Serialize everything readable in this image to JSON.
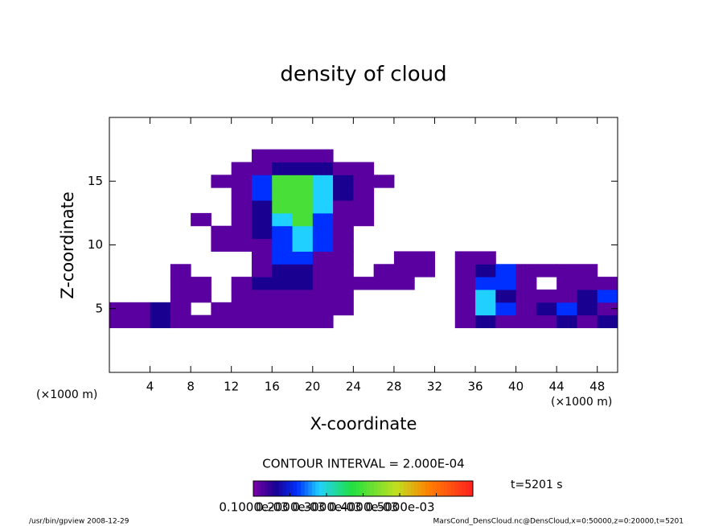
{
  "chart_data": {
    "type": "heatmap",
    "title": "density of cloud",
    "x_label": "X-coordinate",
    "y_label": "Z-coordinate",
    "x_unit": "(×1000 m)",
    "y_unit": "(×1000 m)",
    "contour_note": "CONTOUR INTERVAL = 2.000E-04",
    "time_label": "t=5201 s",
    "footer_left": "/usr/bin/gpview   2008-12-29",
    "footer_right": "MarsCond_DensCloud.nc@DensCloud,x=0:50000,z=0:20000,t=5201",
    "x": [
      1,
      3,
      5,
      7,
      9,
      11,
      13,
      15,
      17,
      19,
      21,
      23,
      25,
      27,
      29,
      31,
      33,
      35,
      37,
      39,
      41,
      43,
      45,
      47,
      49
    ],
    "z": [
      4,
      5,
      6,
      7,
      8,
      9,
      10,
      11,
      12,
      13,
      14,
      15,
      16,
      17
    ],
    "values": [
      [
        2e-05,
        2e-05,
        6e-05,
        2e-05,
        2e-05,
        2e-05,
        2e-05,
        2e-05,
        2e-05,
        2e-05,
        2e-05,
        0,
        0,
        0,
        0,
        0,
        0,
        2e-05,
        6e-05,
        2e-05,
        2e-05,
        2e-05,
        6e-05,
        2e-05,
        6e-05
      ],
      [
        2e-05,
        2e-05,
        6e-05,
        2e-05,
        0,
        2e-05,
        2e-05,
        2e-05,
        2e-05,
        2e-05,
        2e-05,
        2e-05,
        0,
        0,
        0,
        0,
        0,
        2e-05,
        0.00018,
        0.00012,
        2e-05,
        6e-05,
        0.00012,
        6e-05,
        2e-05
      ],
      [
        0,
        0,
        0,
        2e-05,
        2e-05,
        0,
        2e-05,
        2e-05,
        2e-05,
        2e-05,
        2e-05,
        2e-05,
        0,
        0,
        0,
        0,
        0,
        2e-05,
        0.00018,
        6e-05,
        2e-05,
        2e-05,
        2e-05,
        6e-05,
        0.00012
      ],
      [
        0,
        0,
        0,
        2e-05,
        2e-05,
        0,
        2e-05,
        6e-05,
        6e-05,
        6e-05,
        2e-05,
        2e-05,
        2e-05,
        2e-05,
        2e-05,
        0,
        0,
        2e-05,
        0.00012,
        0.00012,
        2e-05,
        0,
        2e-05,
        2e-05,
        2e-05
      ],
      [
        0,
        0,
        0,
        2e-05,
        0,
        0,
        0,
        2e-05,
        6e-05,
        6e-05,
        2e-05,
        2e-05,
        0,
        2e-05,
        2e-05,
        2e-05,
        0,
        2e-05,
        6e-05,
        0.00012,
        2e-05,
        2e-05,
        2e-05,
        2e-05,
        0
      ],
      [
        0,
        0,
        0,
        0,
        0,
        0,
        0,
        2e-05,
        0.00012,
        0.00012,
        2e-05,
        2e-05,
        0,
        0,
        2e-05,
        2e-05,
        0,
        2e-05,
        2e-05,
        0,
        0,
        0,
        0,
        0,
        0
      ],
      [
        0,
        0,
        0,
        0,
        0,
        2e-05,
        2e-05,
        2e-05,
        0.00012,
        0.00018,
        0.00012,
        2e-05,
        0,
        0,
        0,
        0,
        0,
        0,
        0,
        0,
        0,
        0,
        0,
        0,
        0
      ],
      [
        0,
        0,
        0,
        0,
        0,
        2e-05,
        2e-05,
        6e-05,
        0.00012,
        0.00018,
        0.00012,
        2e-05,
        0,
        0,
        0,
        0,
        0,
        0,
        0,
        0,
        0,
        0,
        0,
        0,
        0
      ],
      [
        0,
        0,
        0,
        0,
        2e-05,
        0,
        2e-05,
        6e-05,
        0.00018,
        0.0003,
        0.00012,
        2e-05,
        2e-05,
        0,
        0,
        0,
        0,
        0,
        0,
        0,
        0,
        0,
        0,
        0,
        0
      ],
      [
        0,
        0,
        0,
        0,
        0,
        0,
        2e-05,
        6e-05,
        0.0003,
        0.0003,
        0.00018,
        2e-05,
        2e-05,
        0,
        0,
        0,
        0,
        0,
        0,
        0,
        0,
        0,
        0,
        0,
        0
      ],
      [
        0,
        0,
        0,
        0,
        0,
        0,
        2e-05,
        0.00012,
        0.0003,
        0.0003,
        0.00018,
        6e-05,
        2e-05,
        0,
        0,
        0,
        0,
        0,
        0,
        0,
        0,
        0,
        0,
        0,
        0
      ],
      [
        0,
        0,
        0,
        0,
        0,
        2e-05,
        2e-05,
        0.00012,
        0.0003,
        0.0003,
        0.00018,
        6e-05,
        2e-05,
        2e-05,
        0,
        0,
        0,
        0,
        0,
        0,
        0,
        0,
        0,
        0,
        0
      ],
      [
        0,
        0,
        0,
        0,
        0,
        0,
        2e-05,
        2e-05,
        6e-05,
        6e-05,
        6e-05,
        2e-05,
        2e-05,
        0,
        0,
        0,
        0,
        0,
        0,
        0,
        0,
        0,
        0,
        0,
        0
      ],
      [
        0,
        0,
        0,
        0,
        0,
        0,
        0,
        2e-05,
        2e-05,
        2e-05,
        2e-05,
        0,
        0,
        0,
        0,
        0,
        0,
        0,
        0,
        0,
        0,
        0,
        0,
        0,
        0
      ]
    ],
    "xlim": [
      0,
      50
    ],
    "ylim": [
      0,
      20
    ],
    "xticks": [
      4,
      8,
      12,
      16,
      20,
      24,
      28,
      32,
      36,
      40,
      44,
      48
    ],
    "yticks": [
      5,
      10,
      15
    ],
    "clim": [
      0,
      0.0006
    ],
    "colorscale": [
      [
        0,
        "#7a00a8"
      ],
      [
        0.1,
        "#1a0090"
      ],
      [
        0.2,
        "#0030ff"
      ],
      [
        0.3,
        "#20d0ff"
      ],
      [
        0.45,
        "#20e040"
      ],
      [
        0.65,
        "#c0e020"
      ],
      [
        0.8,
        "#ff8000"
      ],
      [
        1,
        "#ff2020"
      ]
    ],
    "colorbar_ticks": [
      {
        "value": 0.0001,
        "label": "0.1000e-03"
      },
      {
        "value": 0.0002,
        "label": "0.2000e-03"
      },
      {
        "value": 0.0003,
        "label": "0.3000e-03"
      },
      {
        "value": 0.0004,
        "label": "0.4000e-03"
      },
      {
        "value": 0.0005,
        "label": "0.5000e-03"
      }
    ]
  }
}
